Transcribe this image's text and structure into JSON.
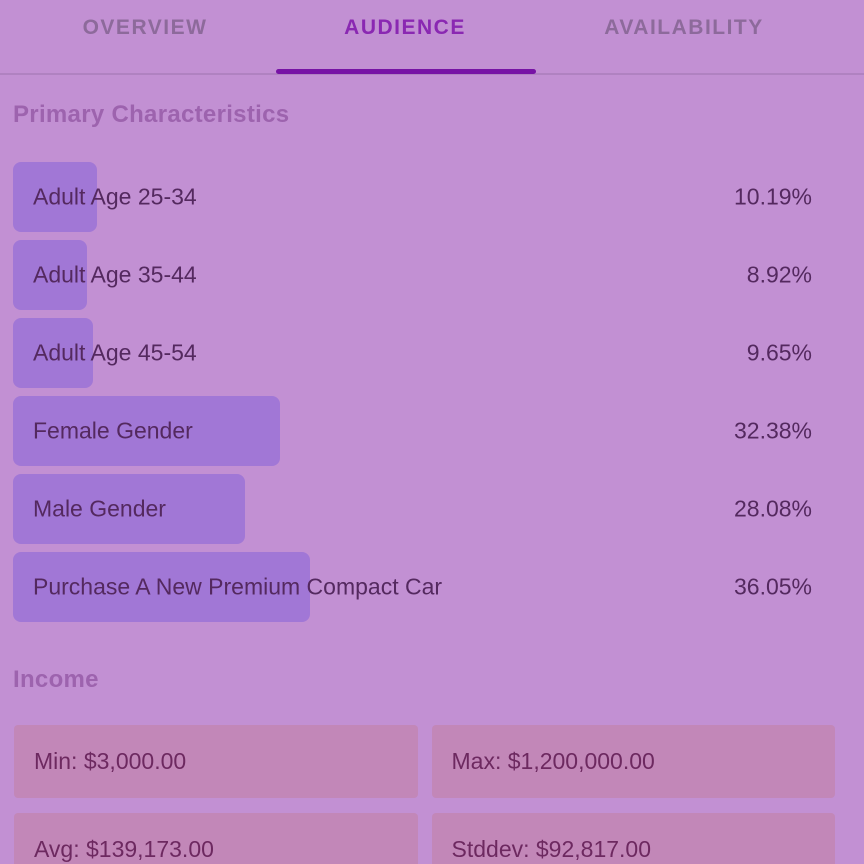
{
  "tabs": {
    "items": [
      {
        "label": "OVERVIEW",
        "active": false
      },
      {
        "label": "AUDIENCE",
        "active": true
      },
      {
        "label": "AVAILABILITY",
        "active": false
      }
    ]
  },
  "primary_characteristics": {
    "title": "Primary Characteristics"
  },
  "chart_data": {
    "type": "bar",
    "orientation": "horizontal",
    "title": "Primary Characteristics",
    "categories": [
      "Adult Age 25-34",
      "Adult Age 35-44",
      "Adult Age 45-54",
      "Female Gender",
      "Male Gender",
      "Purchase A New Premium Compact Car"
    ],
    "values": [
      10.19,
      8.92,
      9.65,
      32.38,
      28.08,
      36.05
    ],
    "value_labels": [
      "10.19%",
      "8.92%",
      "9.65%",
      "32.38%",
      "28.08%",
      "36.05%"
    ],
    "xlim": [
      0,
      100
    ],
    "grid": false,
    "legend": "none"
  },
  "income": {
    "title": "Income",
    "stats": [
      {
        "name": "min",
        "text": "Min: $3,000.00"
      },
      {
        "name": "max",
        "text": "Max: $1,200,000.00"
      },
      {
        "name": "avg",
        "text": "Avg: $139,173.00"
      },
      {
        "name": "stddev",
        "text": "Stddev: $92,817.00"
      }
    ]
  },
  "colors": {
    "bg": "#c290d3",
    "bar": "#a177d6",
    "income-box": "#c287b8",
    "title": "#9d63ae",
    "text-dark": "#54295f",
    "income-text": "#6d2960",
    "tab-inactive": "#8d6a9b",
    "tab-active": "#8a28b2",
    "underline": "#7713a5",
    "divider": "#b082c1"
  }
}
